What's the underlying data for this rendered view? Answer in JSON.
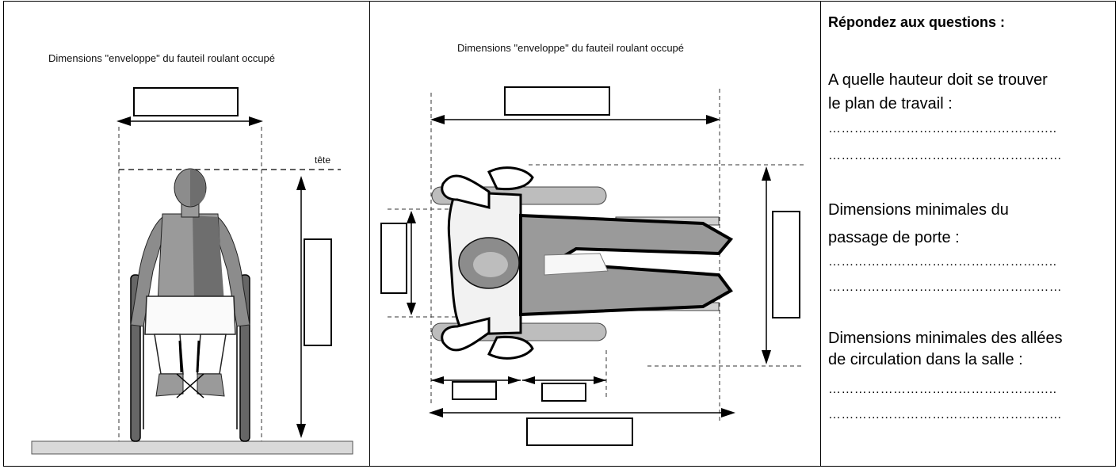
{
  "left_figure": {
    "caption": "Dimensions \"enveloppe\" du fauteil roulant occupé",
    "head_label": "tête"
  },
  "middle_figure": {
    "caption": "Dimensions \"enveloppe\" du fauteil roulant occupé"
  },
  "questions": {
    "title": "Répondez aux questions :",
    "q1_line1": "A quelle hauteur doit se trouver",
    "q1_line2": "le plan de travail :",
    "q2_line1": "Dimensions minimales du",
    "q2_line2": "passage de porte :",
    "q3_line1": "Dimensions minimales des allées",
    "q3_line2": "de circulation dans la salle :",
    "dots_a": "……………………………………………..",
    "dots_b": "………………………………………………"
  }
}
